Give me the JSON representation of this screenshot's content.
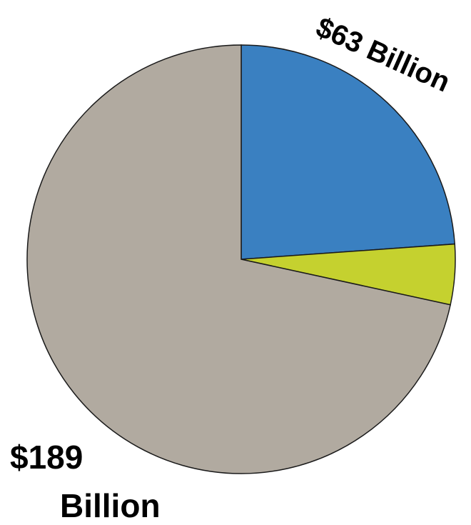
{
  "chart_data": {
    "type": "pie",
    "title": "",
    "start_angle_deg": 0,
    "direction": "clockwise",
    "slices": [
      {
        "value": 63,
        "color": "#3a80c1"
      },
      {
        "value": 12,
        "color": "#c5d12f"
      },
      {
        "value": 189,
        "color": "#b1aaa0"
      }
    ],
    "labels": {
      "slice_63": "$63 Billion",
      "slice_189_line1": "$189",
      "slice_189_line2": "Billion"
    }
  }
}
